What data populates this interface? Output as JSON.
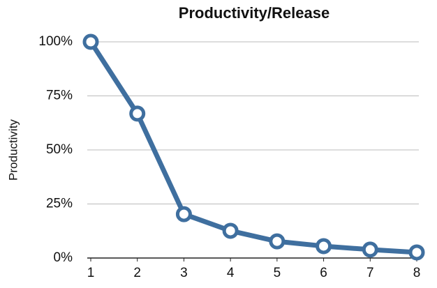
{
  "chart_data": {
    "type": "line",
    "title": "Productivity/Release",
    "y_label": "Productivity",
    "x": [
      1,
      2,
      3,
      4,
      5,
      6,
      7,
      8
    ],
    "series": [
      {
        "name": "Productivity",
        "color": "#3f6f9f",
        "values": [
          100,
          66.8,
          20.3,
          12.6,
          7.7,
          5.5,
          3.9,
          2.6
        ]
      }
    ],
    "xlim": [
      1,
      8
    ],
    "xticks": [
      1,
      2,
      3,
      4,
      5,
      6,
      7,
      8
    ],
    "ylim": [
      0,
      100
    ],
    "yticks": [
      {
        "value": 0,
        "label": "0%"
      },
      {
        "value": 25,
        "label": "25%"
      },
      {
        "value": 50,
        "label": "50%"
      },
      {
        "value": 75,
        "label": "75%"
      },
      {
        "value": 100,
        "label": "100%"
      }
    ],
    "grid": true
  }
}
